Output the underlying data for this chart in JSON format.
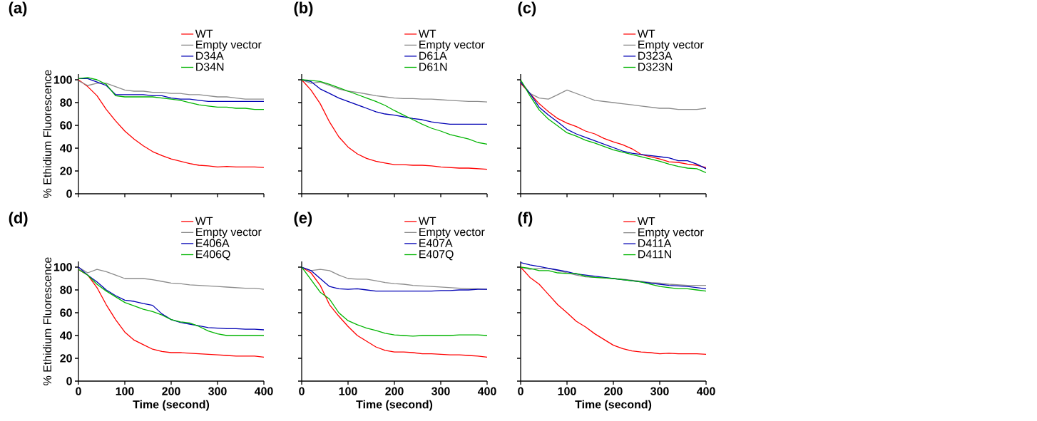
{
  "chart_data": [
    {
      "type": "line",
      "title": "(a)",
      "ylabel": "% Ethidium Fluorescence",
      "x": [
        0,
        20,
        40,
        60,
        80,
        100,
        120,
        140,
        160,
        180,
        200,
        220,
        240,
        260,
        280,
        300,
        320,
        340,
        360,
        380,
        400
      ],
      "xlim": [
        0,
        400
      ],
      "ylim": [
        0,
        105
      ],
      "xticks": [
        0,
        100,
        200,
        300,
        400
      ],
      "yticks": [
        0,
        20,
        40,
        60,
        80,
        100
      ],
      "legend": "top right",
      "tick_labels": "y",
      "series": [
        {
          "name": "WT",
          "color": "#ff0000",
          "values": [
            100,
            94,
            86,
            74,
            64,
            55,
            48,
            42,
            37,
            33.5,
            30.5,
            28.5,
            26.5,
            25,
            24.5,
            23.5,
            24,
            23.5,
            23.5,
            23.5,
            23
          ]
        },
        {
          "name": "Empty vector",
          "color": "#8c8c8c",
          "values": [
            99,
            95,
            97,
            97,
            94,
            91,
            90,
            90,
            89,
            89,
            88,
            88,
            87,
            87,
            86,
            85,
            85,
            84,
            83,
            83,
            83
          ]
        },
        {
          "name": "D34A",
          "color": "#0000b4",
          "values": [
            101,
            101,
            98,
            95,
            87,
            87,
            87,
            87,
            86,
            86,
            84,
            83,
            83,
            82,
            81,
            81,
            81,
            81,
            81,
            81,
            81
          ]
        },
        {
          "name": "D34N",
          "color": "#00b400",
          "values": [
            101,
            102,
            100,
            96,
            86,
            85,
            85,
            85,
            85,
            84,
            83,
            82,
            80,
            78,
            77,
            76,
            76,
            75,
            75,
            74,
            74
          ]
        }
      ]
    },
    {
      "type": "line",
      "title": "(b)",
      "x": [
        0,
        20,
        40,
        60,
        80,
        100,
        120,
        140,
        160,
        180,
        200,
        220,
        240,
        260,
        280,
        300,
        320,
        340,
        360,
        380,
        400
      ],
      "xlim": [
        0,
        400
      ],
      "ylim": [
        0,
        105
      ],
      "xticks": [
        0,
        100,
        200,
        300,
        400
      ],
      "yticks": [
        0,
        20,
        40,
        60,
        80,
        100
      ],
      "legend": "top right",
      "tick_labels": false,
      "series": [
        {
          "name": "WT",
          "color": "#ff0000",
          "values": [
            100,
            91,
            79,
            63,
            50,
            41,
            35,
            31,
            28.5,
            27,
            25.5,
            25.5,
            25,
            25,
            24.5,
            23.5,
            23,
            22.5,
            22.5,
            22,
            21.5
          ]
        },
        {
          "name": "Empty vector",
          "color": "#8c8c8c",
          "values": [
            100,
            97,
            98,
            95,
            92,
            90,
            89,
            87.5,
            86,
            85,
            84,
            83.5,
            83.5,
            83,
            83,
            82.5,
            82,
            81.5,
            81,
            81,
            80.5
          ]
        },
        {
          "name": "D61A",
          "color": "#0000b4",
          "values": [
            100,
            98.5,
            92,
            88,
            84,
            81,
            78,
            75,
            72,
            70,
            69,
            67.5,
            66,
            65,
            63,
            62,
            61,
            61,
            61,
            61,
            61
          ]
        },
        {
          "name": "D61N",
          "color": "#00b400",
          "values": [
            100,
            99.5,
            98.5,
            96,
            93,
            90,
            87,
            84,
            81,
            77.5,
            73,
            69,
            65,
            61,
            57.5,
            55,
            52,
            50,
            48,
            45,
            43.5
          ]
        }
      ]
    },
    {
      "type": "line",
      "title": "(c)",
      "x": [
        0,
        20,
        40,
        60,
        80,
        100,
        120,
        140,
        160,
        180,
        200,
        220,
        240,
        260,
        280,
        300,
        320,
        340,
        360,
        380,
        400
      ],
      "xlim": [
        0,
        400
      ],
      "ylim": [
        0,
        105
      ],
      "xticks": [
        0,
        100,
        200,
        300,
        400
      ],
      "yticks": [
        0,
        20,
        40,
        60,
        80,
        100
      ],
      "legend": "top right",
      "tick_labels": false,
      "series": [
        {
          "name": "WT",
          "color": "#ff0000",
          "values": [
            97,
            88,
            79,
            72,
            66,
            62,
            59,
            55,
            52.5,
            48.5,
            45.5,
            43,
            39.5,
            34.5,
            32.5,
            30.5,
            28,
            27.5,
            26,
            25,
            23
          ]
        },
        {
          "name": "Empty vector",
          "color": "#8c8c8c",
          "values": [
            99,
            88,
            84,
            83,
            87,
            91,
            88,
            85,
            82,
            81,
            80,
            79,
            78,
            77,
            76,
            75,
            75,
            74,
            74,
            74,
            75
          ]
        },
        {
          "name": "D323A",
          "color": "#0000b4",
          "values": [
            98,
            88,
            76,
            69,
            63,
            56.5,
            52.5,
            49.5,
            46.5,
            43.5,
            40.5,
            37.5,
            35.5,
            34.5,
            33.5,
            32.5,
            31.5,
            29,
            29,
            26,
            22
          ]
        },
        {
          "name": "D323N",
          "color": "#00b400",
          "values": [
            100,
            86,
            73.5,
            65.5,
            59.5,
            53.5,
            50.5,
            47,
            44.5,
            41.5,
            38.5,
            36.5,
            34.5,
            32.5,
            30.5,
            28.5,
            26,
            24,
            22.5,
            22,
            18.5
          ]
        }
      ]
    },
    {
      "type": "line",
      "title": "(d)",
      "xlabel": "Time (second)",
      "ylabel": "% Ethidium Fluorescence",
      "x": [
        0,
        20,
        40,
        60,
        80,
        100,
        120,
        140,
        160,
        180,
        200,
        220,
        240,
        260,
        280,
        300,
        320,
        340,
        360,
        380,
        400
      ],
      "xlim": [
        0,
        400
      ],
      "ylim": [
        0,
        105
      ],
      "xticks": [
        0,
        100,
        200,
        300,
        400
      ],
      "yticks": [
        0,
        20,
        40,
        60,
        80,
        100
      ],
      "legend": "top right",
      "series": [
        {
          "name": "WT",
          "color": "#ff0000",
          "values": [
            98,
            93,
            82,
            67,
            54,
            43,
            36,
            32,
            28,
            26,
            25,
            25,
            24.5,
            24,
            23.5,
            23,
            22.5,
            22,
            22,
            22,
            21
          ]
        },
        {
          "name": "Empty vector",
          "color": "#8c8c8c",
          "values": [
            100,
            95,
            98,
            96,
            93,
            90,
            90,
            90,
            89,
            87.5,
            86,
            85.5,
            84.5,
            84,
            83.5,
            83,
            82.5,
            82,
            81.5,
            81.5,
            80.5
          ]
        },
        {
          "name": "E406A",
          "color": "#0000b4",
          "values": [
            100,
            93,
            87,
            80,
            75,
            71,
            70,
            68,
            66.5,
            59,
            54,
            51.5,
            50,
            48.5,
            47,
            46.5,
            46,
            46,
            45.5,
            45.5,
            45
          ]
        },
        {
          "name": "E406Q",
          "color": "#00b400",
          "values": [
            98,
            93,
            85,
            79,
            74,
            69,
            66,
            63,
            61,
            58,
            54,
            52,
            51,
            48,
            44,
            41.5,
            40,
            40,
            40,
            40,
            40
          ]
        }
      ]
    },
    {
      "type": "line",
      "title": "(e)",
      "xlabel": "Time (second)",
      "x": [
        0,
        20,
        40,
        60,
        80,
        100,
        120,
        140,
        160,
        180,
        200,
        220,
        240,
        260,
        280,
        300,
        320,
        340,
        360,
        380,
        400
      ],
      "xlim": [
        0,
        400
      ],
      "ylim": [
        0,
        105
      ],
      "xticks": [
        0,
        100,
        200,
        300,
        400
      ],
      "yticks": [
        0,
        20,
        40,
        60,
        80,
        100
      ],
      "legend": "top right",
      "tick_labels": "x",
      "series": [
        {
          "name": "WT",
          "color": "#ff0000",
          "values": [
            100,
            95,
            84,
            67,
            57,
            48,
            40,
            35,
            30,
            27,
            25.5,
            25.5,
            25,
            24,
            24,
            23.5,
            23,
            23,
            22.5,
            22,
            21
          ]
        },
        {
          "name": "Empty vector",
          "color": "#8c8c8c",
          "values": [
            100,
            97,
            98,
            97,
            93,
            90,
            89.5,
            89.5,
            88,
            86.5,
            85.5,
            85,
            84,
            83.5,
            83,
            82.5,
            82,
            81.5,
            81,
            81,
            80.5
          ]
        },
        {
          "name": "E407A",
          "color": "#0000b4",
          "values": [
            100,
            97,
            90,
            83,
            81,
            80.5,
            81,
            80,
            79,
            79,
            79,
            79,
            79,
            79,
            79,
            79.5,
            79.5,
            80,
            80,
            80.5,
            80.5
          ]
        },
        {
          "name": "E407Q",
          "color": "#00b400",
          "values": [
            100,
            89,
            78,
            72,
            60,
            53,
            49.5,
            46.5,
            44.5,
            42,
            40.5,
            40,
            39.5,
            40,
            40,
            40,
            40,
            40.5,
            40.5,
            40.5,
            40
          ]
        }
      ]
    },
    {
      "type": "line",
      "title": "(f)",
      "xlabel": "Time (second)",
      "x": [
        0,
        20,
        40,
        60,
        80,
        100,
        120,
        140,
        160,
        180,
        200,
        220,
        240,
        260,
        280,
        300,
        320,
        340,
        360,
        380,
        400
      ],
      "xlim": [
        0,
        400
      ],
      "ylim": [
        0,
        105
      ],
      "xticks": [
        0,
        100,
        200,
        300,
        400
      ],
      "yticks": [
        0,
        20,
        40,
        60,
        80,
        100
      ],
      "legend": "top right",
      "tick_labels": "x",
      "series": [
        {
          "name": "WT",
          "color": "#ff0000",
          "values": [
            100,
            91,
            85,
            76,
            67,
            60,
            52.5,
            47.5,
            41.5,
            36.5,
            31.5,
            28.5,
            26.5,
            25.5,
            25,
            24,
            24.5,
            24,
            24,
            24,
            23.5
          ]
        },
        {
          "name": "Empty vector",
          "color": "#8c8c8c",
          "values": [
            100,
            98,
            99,
            99,
            97,
            95,
            93,
            91.5,
            91,
            90.5,
            90,
            89.5,
            88.5,
            87.5,
            86.5,
            86,
            85,
            84.5,
            84,
            84,
            84
          ]
        },
        {
          "name": "D411A",
          "color": "#0000b4",
          "values": [
            104,
            102,
            100.5,
            99,
            97.5,
            96,
            94,
            93,
            92,
            91,
            90,
            89,
            88,
            87,
            86,
            85,
            84,
            83.5,
            83,
            82,
            81
          ]
        },
        {
          "name": "D411N",
          "color": "#00b400",
          "values": [
            100,
            99,
            97,
            97,
            95,
            94.5,
            94.5,
            92,
            91,
            90.5,
            90,
            89,
            88,
            87,
            85,
            83,
            82,
            81,
            81,
            80,
            79
          ]
        }
      ]
    }
  ]
}
